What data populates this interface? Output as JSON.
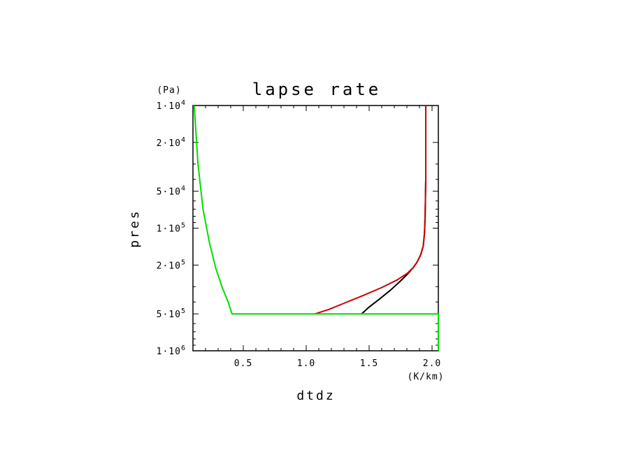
{
  "chart_data": {
    "type": "line",
    "title": "lapse rate",
    "xlabel": "dtdz",
    "ylabel": "pres",
    "x_unit": "(K/km)",
    "y_unit": "(Pa)",
    "xlim": [
      0.1,
      2.05
    ],
    "ylim": [
      10000,
      1000000
    ],
    "yscale": "log",
    "y_inverted": true,
    "grid": false,
    "x_tick_labels": [
      {
        "value": 0.5,
        "label": "0.5"
      },
      {
        "value": 1.0,
        "label": "1.0"
      },
      {
        "value": 1.5,
        "label": "1.5"
      },
      {
        "value": 2.0,
        "label": "2.0"
      }
    ],
    "y_tick_labels": [
      {
        "value": 10000,
        "mant": "1·10",
        "exp": "4"
      },
      {
        "value": 20000,
        "mant": "2·10",
        "exp": "4"
      },
      {
        "value": 50000,
        "mant": "5·10",
        "exp": "4"
      },
      {
        "value": 100000,
        "mant": "1·10",
        "exp": "5"
      },
      {
        "value": 200000,
        "mant": "2·10",
        "exp": "5"
      },
      {
        "value": 500000,
        "mant": "5·10",
        "exp": "5"
      },
      {
        "value": 1000000,
        "mant": "1·10",
        "exp": "6"
      }
    ],
    "series": [
      {
        "color": "#000000",
        "points": [
          [
            1.95,
            10000
          ],
          [
            1.95,
            40000
          ],
          [
            1.945,
            80000
          ],
          [
            1.94,
            110000
          ],
          [
            1.93,
            140000
          ],
          [
            1.91,
            165000
          ],
          [
            1.88,
            190000
          ],
          [
            1.85,
            210000
          ],
          [
            1.8,
            240000
          ],
          [
            1.74,
            275000
          ],
          [
            1.67,
            320000
          ],
          [
            1.58,
            380000
          ],
          [
            1.5,
            440000
          ],
          [
            1.44,
            500000
          ]
        ]
      },
      {
        "color": "#cc0000",
        "points": [
          [
            1.95,
            10000
          ],
          [
            1.95,
            40000
          ],
          [
            1.945,
            80000
          ],
          [
            1.94,
            110000
          ],
          [
            1.93,
            140000
          ],
          [
            1.91,
            165000
          ],
          [
            1.88,
            190000
          ],
          [
            1.85,
            210000
          ],
          [
            1.8,
            235000
          ],
          [
            1.72,
            265000
          ],
          [
            1.6,
            305000
          ],
          [
            1.45,
            355000
          ],
          [
            1.3,
            410000
          ],
          [
            1.18,
            460000
          ],
          [
            1.07,
            500000
          ]
        ]
      },
      {
        "color": "#00dd00",
        "points": [
          [
            0.11,
            10000
          ],
          [
            0.14,
            30000
          ],
          [
            0.18,
            70000
          ],
          [
            0.23,
            130000
          ],
          [
            0.28,
            210000
          ],
          [
            0.33,
            300000
          ],
          [
            0.38,
            400000
          ],
          [
            0.41,
            500000
          ],
          [
            1.07,
            500000
          ],
          [
            1.44,
            500000
          ],
          [
            2.05,
            500000
          ],
          [
            2.05,
            1000000
          ]
        ]
      }
    ]
  }
}
